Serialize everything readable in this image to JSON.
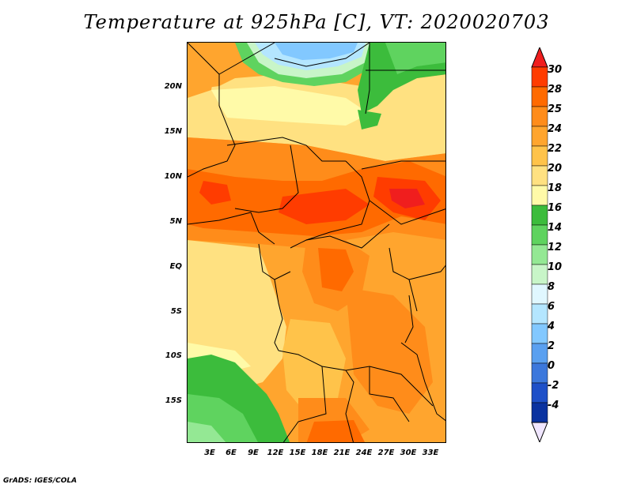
{
  "title": "Temperature at 925hPa [C], VT: 2020020703",
  "footer": "GrADS: IGES/COLA",
  "latitude_labels": [
    "20N",
    "15N",
    "10N",
    "5N",
    "EQ",
    "5S",
    "10S",
    "15S"
  ],
  "longitude_labels": [
    "3E",
    "6E",
    "9E",
    "12E",
    "15E",
    "18E",
    "21E",
    "24E",
    "27E",
    "30E",
    "33E"
  ],
  "colorbar": {
    "labels": [
      "30",
      "28",
      "25",
      "24",
      "22",
      "20",
      "18",
      "16",
      "14",
      "12",
      "10",
      "8",
      "6",
      "4",
      "2",
      "0",
      "-2",
      "-4"
    ],
    "colors": [
      "#f01e1e",
      "#ff3c00",
      "#ff6a00",
      "#ff8c1a",
      "#ffa52e",
      "#ffc34a",
      "#ffe181",
      "#fffaa8",
      "#3cbc3c",
      "#5fd35f",
      "#94e894",
      "#c8f5c8",
      "#e0f7ff",
      "#b4e6ff",
      "#82c8ff",
      "#5aa0f0",
      "#3c78dc",
      "#1e50c8",
      "#0a32a0",
      "#f0e6ff"
    ]
  }
}
